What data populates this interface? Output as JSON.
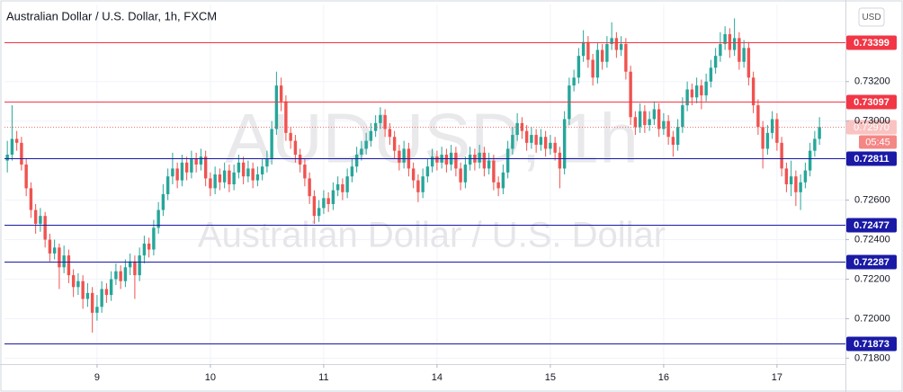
{
  "chart_data": {
    "type": "candlestick",
    "title": "Australian Dollar / U.S. Dollar, 1h, FXCM",
    "watermark": "AUDUSD, 1h",
    "watermark_subtitle": "Australian Dollar / U.S. Dollar",
    "currency": "USD",
    "up_color": "#26a69a",
    "down_color": "#ef5350",
    "grid": true,
    "ylim": [
      0.7177,
      0.7359
    ],
    "yticks": [
      {
        "value": 0.718,
        "label": "0.71800"
      },
      {
        "value": 0.72,
        "label": "0.72000"
      },
      {
        "value": 0.722,
        "label": "0.72200"
      },
      {
        "value": 0.724,
        "label": "0.72400"
      },
      {
        "value": 0.726,
        "label": "0.72600"
      },
      {
        "value": 0.73,
        "label": "0.73000"
      },
      {
        "value": 0.732,
        "label": "0.73200"
      }
    ],
    "xlim": [
      -0.6,
      177.5
    ],
    "xticks": [
      {
        "value": 19,
        "label": "9"
      },
      {
        "value": 43,
        "label": "10"
      },
      {
        "value": 67,
        "label": "11"
      },
      {
        "value": 91,
        "label": "14"
      },
      {
        "value": 115,
        "label": "15"
      },
      {
        "value": 139,
        "label": "16"
      },
      {
        "value": 163,
        "label": "17"
      }
    ],
    "levels": [
      {
        "value": 0.73399,
        "color": "#f23645"
      },
      {
        "value": 0.73097,
        "color": "#f23645"
      },
      {
        "value": 0.72811,
        "color": "#1a1aa6"
      },
      {
        "value": 0.72477,
        "color": "#1a1aa6"
      },
      {
        "value": 0.72287,
        "color": "#1a1aa6"
      },
      {
        "value": 0.71873,
        "color": "#1a1aa6"
      }
    ],
    "last_price": {
      "value": 0.7297,
      "label": "0.72970",
      "countdown": "05:45",
      "color": "#ef5350"
    },
    "candles": [
      [
        0.728,
        0.729,
        0.7274,
        0.7283
      ],
      [
        0.7283,
        0.7308,
        0.728,
        0.7291
      ],
      [
        0.7291,
        0.7295,
        0.7285,
        0.7289
      ],
      [
        0.7289,
        0.7292,
        0.7275,
        0.7278
      ],
      [
        0.7278,
        0.7281,
        0.7262,
        0.7266
      ],
      [
        0.7266,
        0.7269,
        0.7251,
        0.7255
      ],
      [
        0.7255,
        0.7258,
        0.7243,
        0.7248
      ],
      [
        0.7248,
        0.7256,
        0.7244,
        0.7252
      ],
      [
        0.7252,
        0.7254,
        0.7236,
        0.724
      ],
      [
        0.724,
        0.7243,
        0.7229,
        0.7233
      ],
      [
        0.7233,
        0.724,
        0.723,
        0.7236
      ],
      [
        0.7236,
        0.7238,
        0.7215,
        0.7226
      ],
      [
        0.7226,
        0.7237,
        0.7223,
        0.7232
      ],
      [
        0.7232,
        0.7235,
        0.7218,
        0.7222
      ],
      [
        0.7222,
        0.7225,
        0.7211,
        0.7216
      ],
      [
        0.7216,
        0.7223,
        0.7212,
        0.7219
      ],
      [
        0.7219,
        0.7222,
        0.7205,
        0.721
      ],
      [
        0.721,
        0.7218,
        0.7206,
        0.7213
      ],
      [
        0.7213,
        0.7216,
        0.7193,
        0.7203
      ],
      [
        0.7203,
        0.7212,
        0.7199,
        0.7206
      ],
      [
        0.7206,
        0.7219,
        0.7203,
        0.7215
      ],
      [
        0.7215,
        0.7218,
        0.7208,
        0.7212
      ],
      [
        0.7212,
        0.7224,
        0.7209,
        0.722
      ],
      [
        0.722,
        0.7228,
        0.7217,
        0.7224
      ],
      [
        0.7224,
        0.7227,
        0.7215,
        0.7219
      ],
      [
        0.7219,
        0.723,
        0.7216,
        0.7226
      ],
      [
        0.7226,
        0.7233,
        0.7222,
        0.7229
      ],
      [
        0.7229,
        0.7232,
        0.721,
        0.7222
      ],
      [
        0.7222,
        0.7236,
        0.7219,
        0.7232
      ],
      [
        0.7232,
        0.7242,
        0.7228,
        0.7238
      ],
      [
        0.7238,
        0.7241,
        0.7231,
        0.7235
      ],
      [
        0.7235,
        0.725,
        0.7232,
        0.7246
      ],
      [
        0.7246,
        0.7259,
        0.7243,
        0.7255
      ],
      [
        0.7255,
        0.7268,
        0.7252,
        0.7263
      ],
      [
        0.7263,
        0.7276,
        0.726,
        0.7272
      ],
      [
        0.7272,
        0.7284,
        0.7268,
        0.7276
      ],
      [
        0.7276,
        0.7279,
        0.7266,
        0.727
      ],
      [
        0.727,
        0.7283,
        0.7267,
        0.7279
      ],
      [
        0.7279,
        0.7282,
        0.727,
        0.7274
      ],
      [
        0.7274,
        0.7285,
        0.7271,
        0.7281
      ],
      [
        0.7281,
        0.7284,
        0.7274,
        0.7278
      ],
      [
        0.7278,
        0.7286,
        0.7275,
        0.7282
      ],
      [
        0.7282,
        0.7285,
        0.7267,
        0.7271
      ],
      [
        0.7271,
        0.7274,
        0.7262,
        0.7266
      ],
      [
        0.7266,
        0.7277,
        0.7263,
        0.7273
      ],
      [
        0.7273,
        0.7276,
        0.7265,
        0.7269
      ],
      [
        0.7269,
        0.7279,
        0.7266,
        0.7275
      ],
      [
        0.7275,
        0.7278,
        0.7264,
        0.7268
      ],
      [
        0.7268,
        0.7278,
        0.7265,
        0.7274
      ],
      [
        0.7274,
        0.7283,
        0.7271,
        0.7279
      ],
      [
        0.7279,
        0.7282,
        0.7268,
        0.7272
      ],
      [
        0.7272,
        0.728,
        0.7269,
        0.7276
      ],
      [
        0.7276,
        0.7279,
        0.7266,
        0.727
      ],
      [
        0.727,
        0.7277,
        0.7267,
        0.7273
      ],
      [
        0.7273,
        0.7281,
        0.727,
        0.7277
      ],
      [
        0.7277,
        0.7285,
        0.7274,
        0.7281
      ],
      [
        0.7281,
        0.73,
        0.7278,
        0.7296
      ],
      [
        0.7296,
        0.7325,
        0.7293,
        0.7318
      ],
      [
        0.7318,
        0.7322,
        0.7305,
        0.731
      ],
      [
        0.731,
        0.7313,
        0.729,
        0.7294
      ],
      [
        0.7294,
        0.7297,
        0.7286,
        0.729
      ],
      [
        0.729,
        0.7293,
        0.7279,
        0.7283
      ],
      [
        0.7283,
        0.7286,
        0.7274,
        0.7278
      ],
      [
        0.7278,
        0.7281,
        0.7267,
        0.7271
      ],
      [
        0.7271,
        0.7274,
        0.7258,
        0.7262
      ],
      [
        0.7262,
        0.7265,
        0.7248,
        0.7252
      ],
      [
        0.7252,
        0.726,
        0.7249,
        0.7256
      ],
      [
        0.7256,
        0.7265,
        0.7253,
        0.7261
      ],
      [
        0.7261,
        0.7264,
        0.7254,
        0.7258
      ],
      [
        0.7258,
        0.7269,
        0.7255,
        0.7265
      ],
      [
        0.7265,
        0.7272,
        0.7262,
        0.7268
      ],
      [
        0.7268,
        0.7271,
        0.726,
        0.7264
      ],
      [
        0.7264,
        0.7276,
        0.7261,
        0.7272
      ],
      [
        0.7272,
        0.7281,
        0.7269,
        0.7277
      ],
      [
        0.7277,
        0.7287,
        0.7274,
        0.7283
      ],
      [
        0.7283,
        0.729,
        0.728,
        0.7286
      ],
      [
        0.7286,
        0.7294,
        0.7283,
        0.729
      ],
      [
        0.729,
        0.7299,
        0.7287,
        0.7295
      ],
      [
        0.7295,
        0.7303,
        0.7292,
        0.7299
      ],
      [
        0.7299,
        0.7307,
        0.7296,
        0.7303
      ],
      [
        0.7303,
        0.7306,
        0.7292,
        0.7296
      ],
      [
        0.7296,
        0.7299,
        0.7288,
        0.7292
      ],
      [
        0.7292,
        0.7295,
        0.7281,
        0.7285
      ],
      [
        0.7285,
        0.7288,
        0.7275,
        0.7279
      ],
      [
        0.7279,
        0.729,
        0.7276,
        0.7286
      ],
      [
        0.7286,
        0.7289,
        0.7272,
        0.7276
      ],
      [
        0.7276,
        0.7279,
        0.7266,
        0.727
      ],
      [
        0.727,
        0.7273,
        0.7259,
        0.7264
      ],
      [
        0.7264,
        0.7276,
        0.7261,
        0.7272
      ],
      [
        0.7272,
        0.7281,
        0.7269,
        0.7277
      ],
      [
        0.7277,
        0.7286,
        0.7274,
        0.7282
      ],
      [
        0.7282,
        0.7285,
        0.7275,
        0.7279
      ],
      [
        0.7279,
        0.7287,
        0.7276,
        0.7283
      ],
      [
        0.7283,
        0.7286,
        0.7274,
        0.7278
      ],
      [
        0.7278,
        0.7288,
        0.7275,
        0.7284
      ],
      [
        0.7284,
        0.7287,
        0.7272,
        0.7276
      ],
      [
        0.7276,
        0.7279,
        0.7265,
        0.7269
      ],
      [
        0.7269,
        0.7282,
        0.7266,
        0.7278
      ],
      [
        0.7278,
        0.7287,
        0.7275,
        0.7283
      ],
      [
        0.7283,
        0.7286,
        0.7275,
        0.7279
      ],
      [
        0.7279,
        0.7288,
        0.7276,
        0.7284
      ],
      [
        0.7284,
        0.7287,
        0.7272,
        0.7276
      ],
      [
        0.7276,
        0.7284,
        0.7273,
        0.728
      ],
      [
        0.728,
        0.7283,
        0.7265,
        0.7269
      ],
      [
        0.7269,
        0.7272,
        0.7262,
        0.7266
      ],
      [
        0.7266,
        0.7278,
        0.7263,
        0.7274
      ],
      [
        0.7274,
        0.729,
        0.7271,
        0.7286
      ],
      [
        0.7286,
        0.7297,
        0.7283,
        0.7293
      ],
      [
        0.7293,
        0.7304,
        0.729,
        0.7299
      ],
      [
        0.7299,
        0.7302,
        0.7291,
        0.7295
      ],
      [
        0.7295,
        0.7298,
        0.7285,
        0.7289
      ],
      [
        0.7289,
        0.7297,
        0.7286,
        0.7293
      ],
      [
        0.7293,
        0.7296,
        0.7284,
        0.7288
      ],
      [
        0.7288,
        0.7296,
        0.7285,
        0.7292
      ],
      [
        0.7292,
        0.7295,
        0.7282,
        0.7286
      ],
      [
        0.7286,
        0.7293,
        0.7283,
        0.7289
      ],
      [
        0.7289,
        0.7292,
        0.728,
        0.7284
      ],
      [
        0.7284,
        0.7287,
        0.7266,
        0.7276
      ],
      [
        0.7276,
        0.7305,
        0.7273,
        0.7301
      ],
      [
        0.7301,
        0.7322,
        0.7298,
        0.7318
      ],
      [
        0.7318,
        0.7326,
        0.7315,
        0.7322
      ],
      [
        0.7322,
        0.7337,
        0.7319,
        0.7333
      ],
      [
        0.7333,
        0.7346,
        0.733,
        0.734
      ],
      [
        0.734,
        0.7343,
        0.7327,
        0.7331
      ],
      [
        0.7331,
        0.7334,
        0.7318,
        0.7322
      ],
      [
        0.7322,
        0.734,
        0.7319,
        0.7336
      ],
      [
        0.7336,
        0.7339,
        0.7326,
        0.733
      ],
      [
        0.733,
        0.7343,
        0.7327,
        0.7339
      ],
      [
        0.7339,
        0.735,
        0.7336,
        0.7342
      ],
      [
        0.7342,
        0.7345,
        0.7332,
        0.7336
      ],
      [
        0.7336,
        0.7343,
        0.7333,
        0.7339
      ],
      [
        0.7339,
        0.7342,
        0.7321,
        0.7325
      ],
      [
        0.7325,
        0.7328,
        0.7298,
        0.7302
      ],
      [
        0.7302,
        0.7305,
        0.7293,
        0.7297
      ],
      [
        0.7297,
        0.7309,
        0.7294,
        0.7305
      ],
      [
        0.7305,
        0.7308,
        0.7294,
        0.7298
      ],
      [
        0.7298,
        0.7305,
        0.7295,
        0.7301
      ],
      [
        0.7301,
        0.731,
        0.7298,
        0.7306
      ],
      [
        0.7306,
        0.7309,
        0.7292,
        0.7296
      ],
      [
        0.7296,
        0.7304,
        0.7293,
        0.73
      ],
      [
        0.73,
        0.7303,
        0.7288,
        0.7292
      ],
      [
        0.7292,
        0.7295,
        0.7282,
        0.7288
      ],
      [
        0.7288,
        0.7301,
        0.7285,
        0.7297
      ],
      [
        0.7297,
        0.7312,
        0.7294,
        0.7308
      ],
      [
        0.7308,
        0.732,
        0.7305,
        0.7316
      ],
      [
        0.7316,
        0.7319,
        0.7308,
        0.7312
      ],
      [
        0.7312,
        0.7322,
        0.7309,
        0.7318
      ],
      [
        0.7318,
        0.7321,
        0.7306,
        0.7313
      ],
      [
        0.7313,
        0.7324,
        0.731,
        0.732
      ],
      [
        0.732,
        0.7331,
        0.7317,
        0.7327
      ],
      [
        0.7327,
        0.7337,
        0.7324,
        0.7333
      ],
      [
        0.7333,
        0.7345,
        0.733,
        0.7339
      ],
      [
        0.7339,
        0.7348,
        0.7336,
        0.7344
      ],
      [
        0.7344,
        0.7347,
        0.7332,
        0.7336
      ],
      [
        0.7336,
        0.7352,
        0.7333,
        0.7342
      ],
      [
        0.7342,
        0.7345,
        0.7326,
        0.733
      ],
      [
        0.733,
        0.7341,
        0.7327,
        0.7337
      ],
      [
        0.7337,
        0.734,
        0.7318,
        0.7322
      ],
      [
        0.7322,
        0.7325,
        0.7304,
        0.7308
      ],
      [
        0.7308,
        0.7311,
        0.7293,
        0.7297
      ],
      [
        0.7297,
        0.73,
        0.7276,
        0.7286
      ],
      [
        0.7286,
        0.7298,
        0.7283,
        0.7294
      ],
      [
        0.7294,
        0.7305,
        0.7291,
        0.7301
      ],
      [
        0.7301,
        0.7304,
        0.7285,
        0.7289
      ],
      [
        0.7289,
        0.7292,
        0.7272,
        0.7276
      ],
      [
        0.7276,
        0.7279,
        0.7264,
        0.7268
      ],
      [
        0.7268,
        0.728,
        0.7262,
        0.7272
      ],
      [
        0.7272,
        0.7275,
        0.7257,
        0.7264
      ],
      [
        0.7264,
        0.7273,
        0.7255,
        0.7269
      ],
      [
        0.7269,
        0.7279,
        0.7266,
        0.7275
      ],
      [
        0.7275,
        0.7289,
        0.7272,
        0.7285
      ],
      [
        0.7285,
        0.7295,
        0.7282,
        0.7291
      ],
      [
        0.7291,
        0.7302,
        0.7288,
        0.7297
      ]
    ]
  }
}
